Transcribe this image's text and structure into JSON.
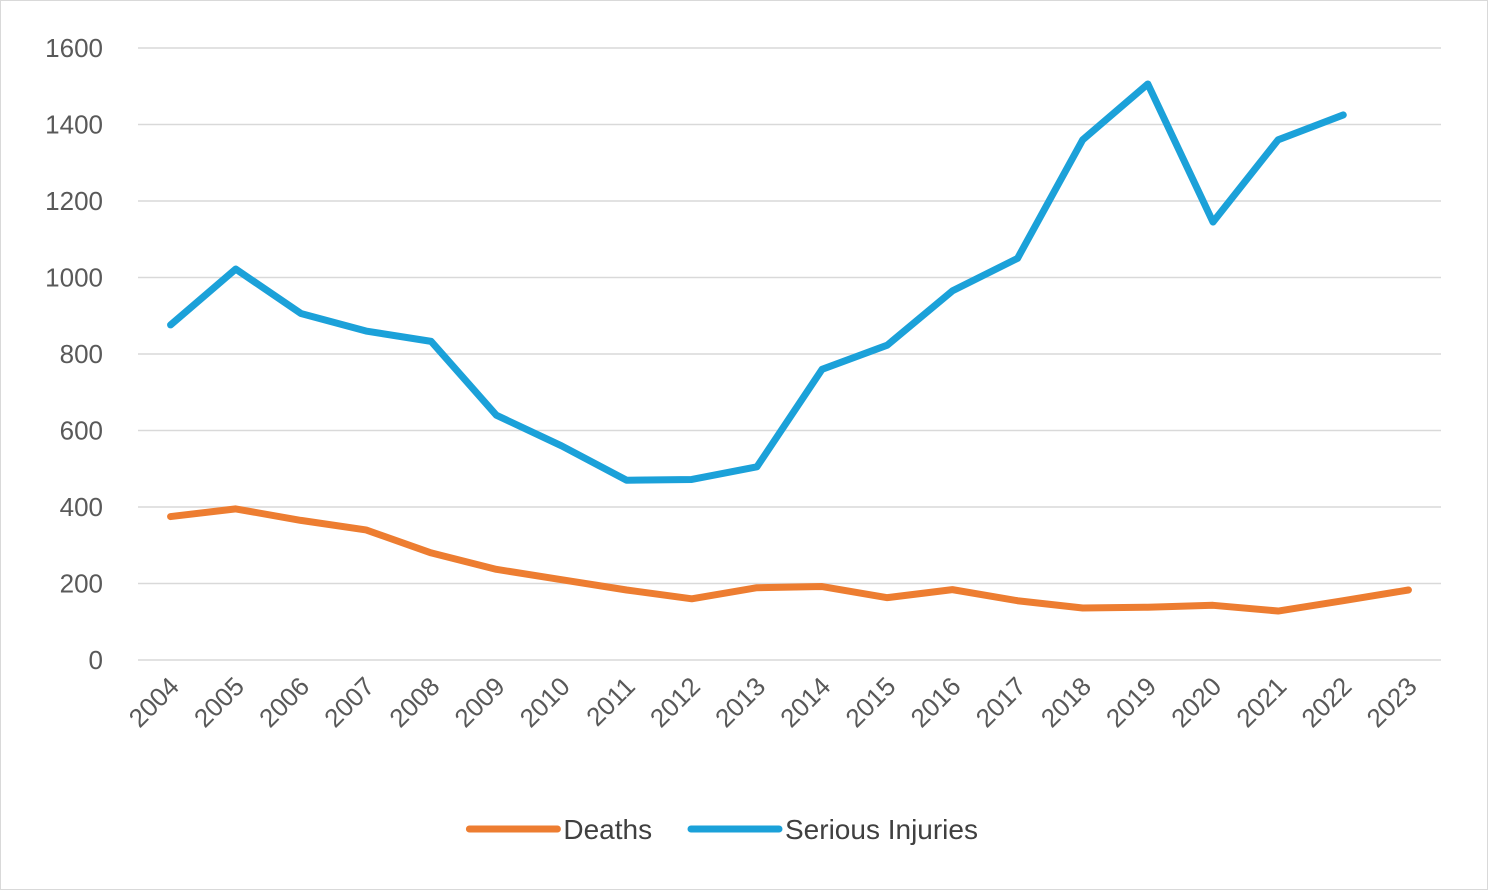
{
  "chart_data": {
    "type": "line",
    "title": "",
    "xlabel": "",
    "ylabel": "",
    "categories": [
      "2004",
      "2005",
      "2006",
      "2007",
      "2008",
      "2009",
      "2010",
      "2011",
      "2012",
      "2013",
      "2014",
      "2015",
      "2016",
      "2017",
      "2018",
      "2019",
      "2020",
      "2021",
      "2022",
      "2023"
    ],
    "ylim": [
      0,
      1600
    ],
    "yticks": [
      0,
      200,
      400,
      600,
      800,
      1000,
      1200,
      1400,
      1600
    ],
    "grid": true,
    "legend_position": "bottom",
    "series": [
      {
        "name": "Deaths",
        "color": "#ed7d31",
        "values": [
          375,
          395,
          365,
          340,
          280,
          237,
          210,
          183,
          160,
          189,
          192,
          163,
          184,
          155,
          136,
          138,
          143,
          128,
          155,
          183
        ]
      },
      {
        "name": "Serious Injuries",
        "color": "#1ba1d9",
        "values": [
          876,
          1022,
          906,
          860,
          833,
          640,
          560,
          470,
          472,
          505,
          760,
          823,
          965,
          1050,
          1360,
          1506,
          1145,
          1360,
          1425,
          null
        ]
      }
    ]
  }
}
